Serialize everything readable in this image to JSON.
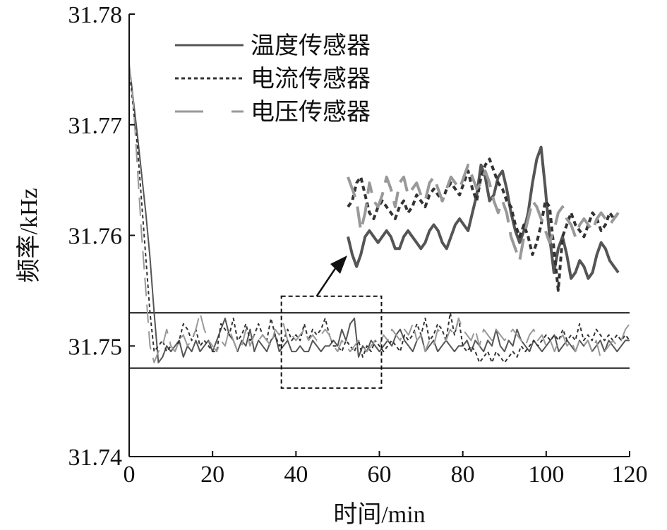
{
  "chart_data": {
    "type": "line",
    "title": "",
    "xlabel": "时间/min",
    "ylabel": "频率/kHz",
    "xlim": [
      0,
      120
    ],
    "ylim": [
      31.74,
      31.78
    ],
    "xticks": [
      "0",
      "20",
      "40",
      "60",
      "80",
      "100",
      "120"
    ],
    "yticks": [
      "31.74",
      "31.75",
      "31.76",
      "31.77",
      "31.78"
    ],
    "grid": false,
    "legend_position": "top-center",
    "band": [
      31.748,
      31.753
    ],
    "zoom_window": {
      "x": [
        36.5,
        60.5
      ],
      "y": [
        31.7462,
        31.7545
      ]
    },
    "series": [
      {
        "name": "温度传感器",
        "style": "solid",
        "color": "#555555",
        "x": [
          0,
          2,
          4,
          5,
          6,
          7,
          8,
          9,
          10,
          11,
          12,
          13,
          14,
          15,
          16,
          17,
          18,
          19,
          20,
          21,
          22,
          23,
          24,
          25,
          26,
          27,
          28,
          29,
          30,
          31,
          32,
          33,
          34,
          35,
          36,
          37,
          38,
          39,
          40,
          41,
          42,
          43,
          44,
          45,
          46,
          47,
          48,
          49,
          50,
          51,
          52,
          53,
          54,
          55,
          56,
          57,
          58,
          59,
          60,
          61,
          62,
          63,
          64,
          65,
          66,
          67,
          68,
          69,
          70,
          71,
          72,
          73,
          74,
          75,
          76,
          77,
          78,
          79,
          80,
          81,
          82,
          83,
          84,
          85,
          86,
          87,
          88,
          89,
          90,
          91,
          92,
          93,
          94,
          95,
          96,
          97,
          98,
          99,
          100,
          101,
          102,
          103,
          104,
          105,
          106,
          107,
          108,
          109,
          110,
          111,
          112,
          113,
          114,
          115,
          116,
          117,
          118,
          119,
          120
        ],
        "y": [
          31.7755,
          31.769,
          31.762,
          31.758,
          31.753,
          31.7485,
          31.749,
          31.75,
          31.7495,
          31.75,
          31.7505,
          31.749,
          31.75,
          31.7495,
          31.7505,
          31.7495,
          31.75,
          31.7505,
          31.7495,
          31.7505,
          31.7515,
          31.7525,
          31.751,
          31.7505,
          31.7495,
          31.7505,
          31.75,
          31.7515,
          31.7495,
          31.7505,
          31.75,
          31.7495,
          31.7505,
          31.751,
          31.7495,
          31.75,
          31.7505,
          31.7495,
          31.7495,
          31.75,
          31.7495,
          31.7495,
          31.7505,
          31.75,
          31.7495,
          31.75,
          31.75,
          31.7505,
          31.75,
          31.7515,
          31.7505,
          31.752,
          31.7525,
          31.749,
          31.75,
          31.7495,
          31.7505,
          31.75,
          31.7495,
          31.75,
          31.7505,
          31.75,
          31.751,
          31.7515,
          31.7505,
          31.75,
          31.7495,
          31.7505,
          31.751,
          31.7495,
          31.75,
          31.7505,
          31.7495,
          31.75,
          31.7505,
          31.75,
          31.7495,
          31.75,
          31.75,
          31.7505,
          31.7495,
          31.7505,
          31.75,
          31.7495,
          31.7505,
          31.75,
          31.7515,
          31.75,
          31.7495,
          31.7505,
          31.75,
          31.7515,
          31.7505,
          31.75,
          31.7495,
          31.7505,
          31.75,
          31.7495,
          31.75,
          31.7505,
          31.751,
          31.7495,
          31.75,
          31.7505,
          31.75,
          31.7495,
          31.7505,
          31.75,
          31.7505,
          31.7495,
          31.75,
          31.7505,
          31.7495,
          31.7505,
          31.75,
          31.7495,
          31.75,
          31.7505,
          31.7505
        ]
      },
      {
        "name": "电流传感器",
        "style": "dashed",
        "color": "#333333",
        "x": [
          0,
          2,
          3,
          4,
          5,
          6,
          7,
          8,
          9,
          10,
          11,
          12,
          13,
          14,
          15,
          16,
          17,
          18,
          19,
          20,
          21,
          22,
          23,
          24,
          25,
          26,
          27,
          28,
          29,
          30,
          31,
          32,
          33,
          34,
          35,
          36,
          37,
          38,
          39,
          40,
          41,
          42,
          43,
          44,
          45,
          46,
          47,
          48,
          49,
          50,
          51,
          52,
          53,
          54,
          55,
          56,
          57,
          58,
          59,
          60,
          61,
          62,
          63,
          64,
          65,
          66,
          67,
          68,
          69,
          70,
          71,
          72,
          73,
          74,
          75,
          76,
          77,
          78,
          79,
          80,
          81,
          82,
          83,
          84,
          85,
          86,
          87,
          88,
          89,
          90,
          91,
          92,
          93,
          94,
          95,
          96,
          97,
          98,
          99,
          100,
          101,
          102,
          103,
          104,
          105,
          106,
          107,
          108,
          109,
          110,
          111,
          112,
          113,
          114,
          115,
          116,
          117,
          118,
          119,
          120
        ],
        "y": [
          31.775,
          31.768,
          31.763,
          31.758,
          31.753,
          31.7495,
          31.75,
          31.7505,
          31.7495,
          31.75,
          31.7495,
          31.7505,
          31.752,
          31.7515,
          31.7505,
          31.7515,
          31.75,
          31.7505,
          31.75,
          31.7495,
          31.7495,
          31.752,
          31.7515,
          31.751,
          31.7525,
          31.7505,
          31.751,
          31.752,
          31.7505,
          31.751,
          31.752,
          31.751,
          31.7505,
          31.7525,
          31.751,
          31.75,
          31.7505,
          31.7515,
          31.7505,
          31.751,
          31.7505,
          31.752,
          31.7505,
          31.7515,
          31.751,
          31.7515,
          31.7525,
          31.751,
          31.75,
          31.75,
          31.7495,
          31.7505,
          31.75,
          31.7495,
          31.7505,
          31.749,
          31.75,
          31.7495,
          31.7505,
          31.75,
          31.7495,
          31.75,
          31.7505,
          31.75,
          31.7495,
          31.751,
          31.7505,
          31.751,
          31.752,
          31.751,
          31.7525,
          31.7505,
          31.751,
          31.752,
          31.7515,
          31.7505,
          31.753,
          31.751,
          31.7525,
          31.75,
          31.7495,
          31.75,
          31.7495,
          31.7485,
          31.749,
          31.7495,
          31.7485,
          31.7495,
          31.749,
          31.7485,
          31.749,
          31.7495,
          31.749,
          31.75,
          31.7495,
          31.75,
          31.7505,
          31.75,
          31.7505,
          31.751,
          31.7505,
          31.751,
          31.7505,
          31.7515,
          31.7505,
          31.751,
          31.7505,
          31.752,
          31.7505,
          31.751,
          31.7505,
          31.7515,
          31.751,
          31.7505,
          31.751,
          31.7505,
          31.751,
          31.7505,
          31.751,
          31.7505
        ]
      },
      {
        "name": "电压传感器",
        "style": "longdash",
        "color": "#999999",
        "x": [
          0,
          1,
          2,
          3,
          4,
          5,
          6,
          7,
          8,
          9,
          10,
          11,
          12,
          13,
          14,
          15,
          16,
          17,
          18,
          19,
          20,
          21,
          22,
          23,
          24,
          25,
          26,
          27,
          28,
          29,
          30,
          31,
          32,
          33,
          34,
          35,
          36,
          37,
          38,
          39,
          40,
          41,
          42,
          43,
          44,
          45,
          46,
          47,
          48,
          49,
          50,
          51,
          52,
          53,
          54,
          55,
          56,
          57,
          58,
          59,
          60,
          61,
          62,
          63,
          64,
          65,
          66,
          67,
          68,
          69,
          70,
          71,
          72,
          73,
          74,
          75,
          76,
          77,
          78,
          79,
          80,
          81,
          82,
          83,
          84,
          85,
          86,
          87,
          88,
          89,
          90,
          91,
          92,
          93,
          94,
          95,
          96,
          97,
          98,
          99,
          100,
          101,
          102,
          103,
          104,
          105,
          106,
          107,
          108,
          109,
          110,
          111,
          112,
          113,
          114,
          115,
          116,
          117,
          118,
          119,
          120
        ],
        "y": [
          31.7755,
          31.772,
          31.766,
          31.76,
          31.755,
          31.75,
          31.7485,
          31.7495,
          31.75,
          31.7515,
          31.75,
          31.7495,
          31.7505,
          31.751,
          31.75,
          31.7505,
          31.7515,
          31.753,
          31.7515,
          31.7505,
          31.75,
          31.7495,
          31.7505,
          31.75,
          31.7515,
          31.7505,
          31.7495,
          31.75,
          31.7515,
          31.75,
          31.751,
          31.7505,
          31.751,
          31.7505,
          31.75,
          31.7515,
          31.751,
          31.752,
          31.7505,
          31.751,
          31.7505,
          31.751,
          31.7515,
          31.7505,
          31.751,
          31.7505,
          31.751,
          31.7515,
          31.751,
          31.75,
          31.7495,
          31.7505,
          31.75,
          31.7495,
          31.75,
          31.7505,
          31.75,
          31.7495,
          31.75,
          31.7505,
          31.75,
          31.751,
          31.7505,
          31.7515,
          31.751,
          31.7505,
          31.7515,
          31.751,
          31.752,
          31.7505,
          31.751,
          31.7495,
          31.7505,
          31.75,
          31.7515,
          31.751,
          31.7505,
          31.7515,
          31.751,
          31.7525,
          31.7515,
          31.751,
          31.7505,
          31.7515,
          31.75,
          31.7515,
          31.751,
          31.7505,
          31.7515,
          31.751,
          31.7505,
          31.751,
          31.7515,
          31.751,
          31.7505,
          31.75,
          31.751,
          31.7515,
          31.7505,
          31.751,
          31.75,
          31.7505,
          31.7495,
          31.7505,
          31.751,
          31.75,
          31.7505,
          31.7495,
          31.7505,
          31.75,
          31.7505,
          31.7495,
          31.7505,
          31.749,
          31.7495,
          31.75,
          31.7505,
          31.75,
          31.7505,
          31.7515,
          31.752
        ]
      }
    ],
    "inset": {
      "x_range": [
        36.5,
        60.5
      ],
      "position": "upper-right",
      "series": [
        {
          "name": "温度传感器",
          "y": [
            31.76,
            31.7585,
            31.7575,
            31.7585,
            31.76,
            31.7605,
            31.76,
            31.7595,
            31.76,
            31.7605,
            31.76,
            31.759,
            31.759,
            31.76,
            31.7605,
            31.76,
            31.7595,
            31.759,
            31.7595,
            31.7605,
            31.761,
            31.7605,
            31.7595,
            31.759,
            31.76,
            31.761,
            31.7615,
            31.761,
            31.7605,
            31.762,
            31.7635,
            31.766,
            31.765,
            31.763,
            31.7635,
            31.765,
            31.7655,
            31.764,
            31.762,
            31.7605,
            31.7595,
            31.7605,
            31.762,
            31.7645,
            31.7665,
            31.7675,
            31.764,
            31.76,
            31.757,
            31.759,
            31.76,
            31.7585,
            31.7565,
            31.757,
            31.758,
            31.7575,
            31.7565,
            31.757,
            31.7585,
            31.7595,
            31.759,
            31.758,
            31.7575,
            31.757
          ]
        },
        {
          "name": "电流传感器",
          "y": [
            31.7625,
            31.763,
            31.7645,
            31.765,
            31.7635,
            31.762,
            31.7615,
            31.7625,
            31.763,
            31.7625,
            31.762,
            31.7615,
            31.7625,
            31.763,
            31.762,
            31.7625,
            31.7635,
            31.763,
            31.7625,
            31.7635,
            31.764,
            31.7635,
            31.763,
            31.764,
            31.7645,
            31.764,
            31.7635,
            31.7645,
            31.7655,
            31.764,
            31.763,
            31.765,
            31.766,
            31.7665,
            31.7655,
            31.7645,
            31.764,
            31.763,
            31.7625,
            31.761,
            31.76,
            31.761,
            31.76,
            31.7585,
            31.7595,
            31.761,
            31.763,
            31.7625,
            31.759,
            31.7555,
            31.76,
            31.761,
            31.762,
            31.761,
            31.7605,
            31.76,
            31.761,
            31.762,
            31.7615,
            31.7605,
            31.761,
            31.762,
            31.7615,
            31.762
          ]
        },
        {
          "name": "电压传感器",
          "y": [
            31.765,
            31.764,
            31.763,
            31.7605,
            31.762,
            31.7645,
            31.763,
            31.7625,
            31.7635,
            31.765,
            31.764,
            31.7625,
            31.7645,
            31.765,
            31.7635,
            31.764,
            31.7645,
            31.7635,
            31.763,
            31.7645,
            31.765,
            31.764,
            31.763,
            31.764,
            31.765,
            31.7645,
            31.764,
            31.765,
            31.766,
            31.765,
            31.764,
            31.7645,
            31.7655,
            31.7645,
            31.763,
            31.762,
            31.763,
            31.762,
            31.76,
            31.759,
            31.758,
            31.76,
            31.7615,
            31.763,
            31.7625,
            31.7615,
            31.7605,
            31.7595,
            31.7605,
            31.762,
            31.7625,
            31.7615,
            31.761,
            31.76,
            31.761,
            31.7615,
            31.761,
            31.7605,
            31.7615,
            31.762,
            31.7615,
            31.761,
            31.7615,
            31.762
          ]
        }
      ]
    }
  }
}
